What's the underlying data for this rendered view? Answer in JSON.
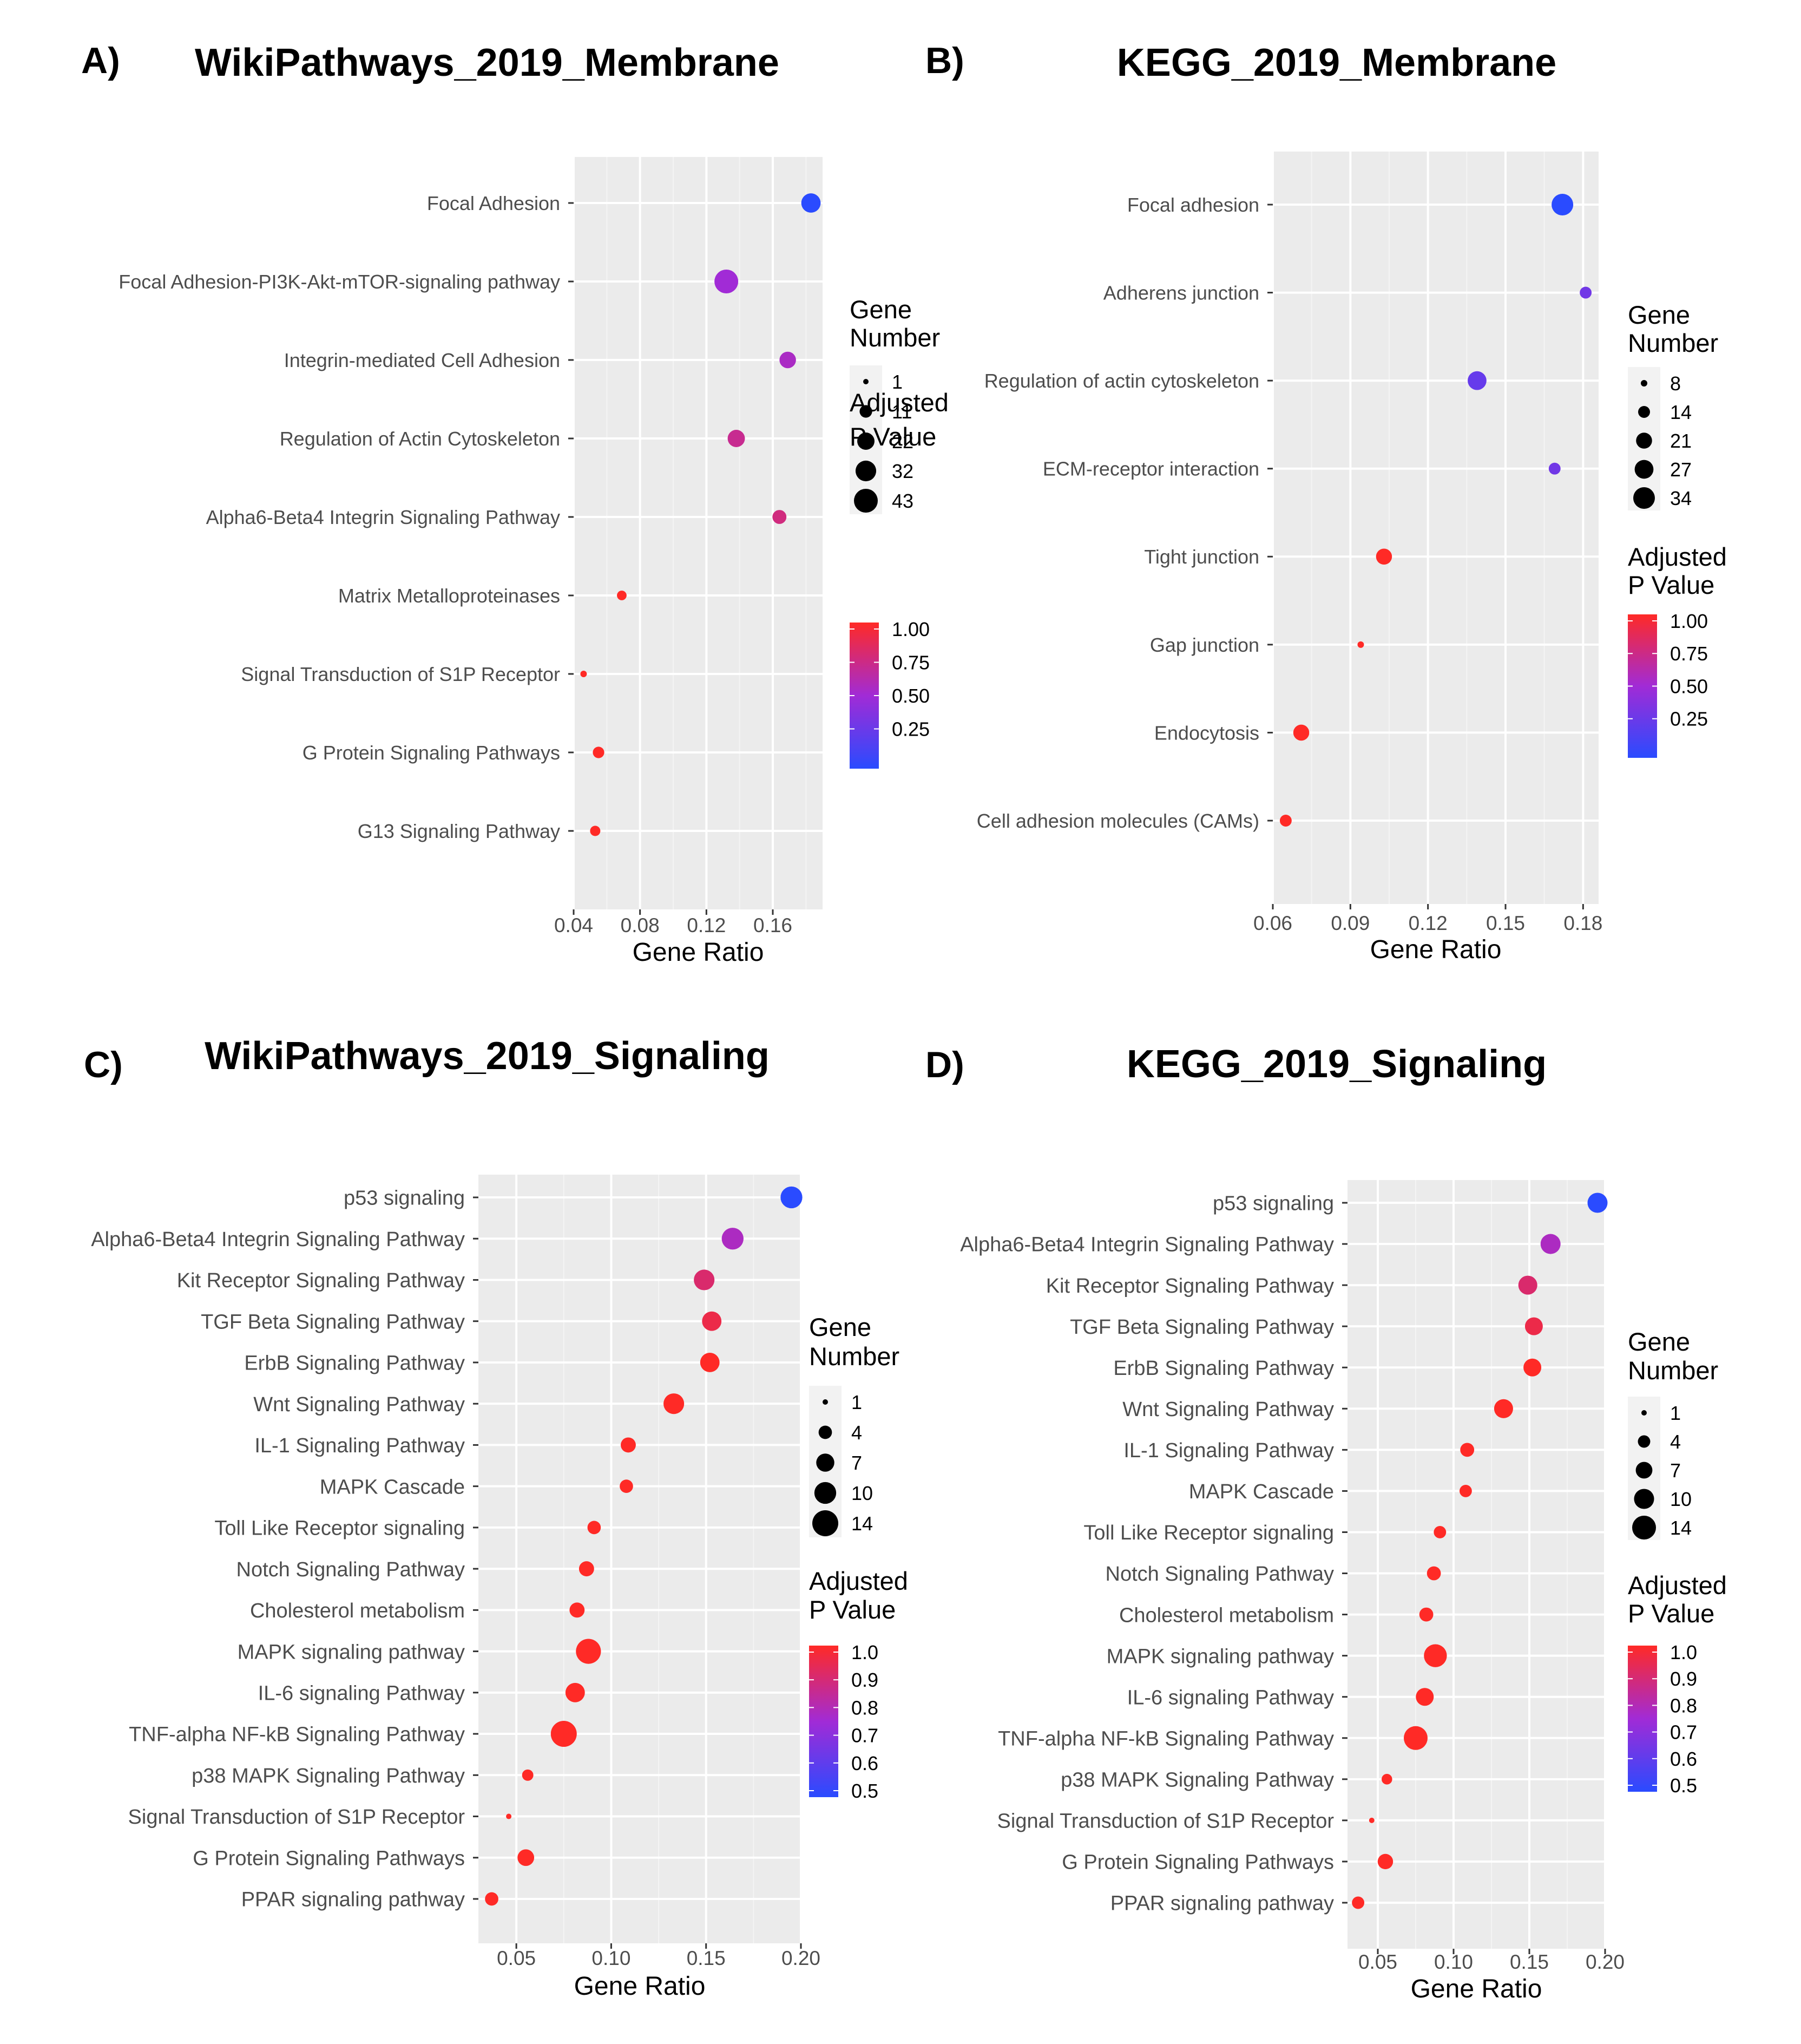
{
  "chart_data": [
    {
      "panel": "A)",
      "type": "scatter",
      "title": "WikiPathways_2019_Membrane",
      "xlabel": "Gene Ratio",
      "ylabel": "",
      "xlim": [
        0.04,
        0.19
      ],
      "xticks": [
        0.04,
        0.08,
        0.12,
        0.16
      ],
      "xtick_labels": [
        "0.04",
        "0.08",
        "0.12",
        "0.16"
      ],
      "grid": true,
      "categories": [
        "Focal Adhesion",
        "Focal Adhesion-PI3K-Akt-mTOR-signaling pathway",
        "Integrin-mediated Cell Adhesion",
        "Regulation of Actin Cytoskeleton",
        "Alpha6-Beta4 Integrin Signaling Pathway",
        "Matrix Metalloproteinases",
        "Signal Transduction of S1P Receptor",
        "G Protein Signaling Pathways",
        "G13 Signaling Pathway"
      ],
      "gene_ratio": [
        0.183,
        0.132,
        0.169,
        0.138,
        0.164,
        0.069,
        0.046,
        0.055,
        0.053
      ],
      "gene_number": [
        28,
        43,
        20,
        22,
        14,
        6,
        2,
        9,
        7
      ],
      "padj": [
        0.0,
        0.5,
        0.55,
        0.7,
        0.75,
        1.0,
        1.0,
        1.0,
        1.0
      ],
      "legend_size": {
        "title_line1": "Gene",
        "title_line2": "Number",
        "values": [
          1,
          11,
          22,
          32,
          43
        ],
        "labels": [
          "1",
          "11",
          "22",
          "32",
          "43"
        ]
      },
      "legend_color": {
        "title_line1": "Adjusted",
        "title_line2": "P Value",
        "min": 0.0,
        "max": 1.0,
        "ticks": [
          1.0,
          0.75,
          0.5,
          0.25
        ],
        "tick_labels": [
          "1.00",
          "0.75",
          "0.50",
          "0.25"
        ]
      }
    },
    {
      "panel": "B)",
      "type": "scatter",
      "title": "KEGG_2019_Membrane",
      "xlabel": "Gene Ratio",
      "ylabel": "",
      "xlim": [
        0.06,
        0.186
      ],
      "xticks": [
        0.06,
        0.09,
        0.12,
        0.15,
        0.18
      ],
      "xtick_labels": [
        "0.06",
        "0.09",
        "0.12",
        "0.15",
        "0.18"
      ],
      "grid": true,
      "categories": [
        "Focal adhesion",
        "Adherens junction",
        "Regulation of actin cytoskeleton",
        "ECM-receptor interaction",
        "Tight junction",
        "Gap junction",
        "Endocytosis",
        "Cell adhesion molecules (CAMs)"
      ],
      "gene_ratio": [
        0.172,
        0.181,
        0.139,
        0.169,
        0.103,
        0.094,
        0.071,
        0.065
      ],
      "gene_number": [
        34,
        14,
        27,
        14,
        21,
        8,
        21,
        14
      ],
      "padj": [
        0.0,
        0.3,
        0.25,
        0.3,
        1.0,
        1.0,
        1.0,
        1.0
      ],
      "legend_size": {
        "title_line1": "Gene",
        "title_line2": "Number",
        "values": [
          8,
          14,
          21,
          27,
          34
        ],
        "labels": [
          "8",
          "14",
          "21",
          "27",
          "34"
        ]
      },
      "legend_color": {
        "title_line1": "Adjusted",
        "title_line2": "P Value",
        "min": 0.0,
        "max": 1.0,
        "ticks": [
          1.0,
          0.75,
          0.5,
          0.25
        ],
        "tick_labels": [
          "1.00",
          "0.75",
          "0.50",
          "0.25"
        ]
      }
    },
    {
      "panel": "C)",
      "type": "scatter",
      "title": "WikiPathways_2019_Signaling",
      "xlabel": "Gene Ratio",
      "ylabel": "",
      "xlim": [
        0.03,
        0.2
      ],
      "xticks": [
        0.05,
        0.1,
        0.15,
        0.2
      ],
      "xtick_labels": [
        "0.05",
        "0.10",
        "0.15",
        "0.20"
      ],
      "grid": true,
      "categories": [
        "p53 signaling",
        "Alpha6-Beta4 Integrin Signaling Pathway",
        "Kit Receptor Signaling Pathway",
        "TGF Beta Signaling Pathway",
        "ErbB Signaling Pathway",
        "Wnt Signaling Pathway",
        "IL-1 Signaling Pathway",
        "MAPK Cascade",
        "Toll Like Receptor signaling",
        "Notch Signaling Pathway",
        "Cholesterol metabolism",
        "MAPK signaling pathway",
        "IL-6 signaling Pathway",
        "TNF-alpha NF-kB Signaling Pathway",
        "p38 MAPK Signaling Pathway",
        "Signal Transduction of S1P Receptor",
        "G Protein Signaling Pathways",
        "PPAR signaling pathway"
      ],
      "gene_ratio": [
        0.195,
        0.164,
        0.149,
        0.153,
        0.152,
        0.133,
        0.109,
        0.108,
        0.091,
        0.087,
        0.082,
        0.088,
        0.081,
        0.075,
        0.056,
        0.046,
        0.055,
        0.037
      ],
      "gene_number": [
        10,
        10,
        9,
        8,
        8,
        9,
        5,
        4,
        4,
        5,
        5,
        13,
        8,
        14,
        3,
        1,
        6,
        4
      ],
      "padj": [
        0.5,
        0.78,
        0.9,
        0.95,
        1.0,
        1.0,
        1.0,
        1.0,
        1.0,
        1.0,
        1.0,
        1.0,
        1.0,
        1.0,
        1.0,
        1.0,
        1.0,
        1.0
      ],
      "legend_size": {
        "title_line1": "Gene",
        "title_line2": "Number",
        "values": [
          1,
          4,
          7,
          10,
          14
        ],
        "labels": [
          "1",
          "4",
          "7",
          "10",
          "14"
        ]
      },
      "legend_color": {
        "title_line1": "Adjusted",
        "title_line2": "P Value",
        "min": 0.5,
        "max": 1.0,
        "ticks": [
          1.0,
          0.9,
          0.8,
          0.7,
          0.6,
          0.5
        ],
        "tick_labels": [
          "1.0",
          "0.9",
          "0.8",
          "0.7",
          "0.6",
          "0.5"
        ]
      }
    },
    {
      "panel": "D)",
      "type": "scatter",
      "title": "KEGG_2019_Signaling",
      "xlabel": "Gene Ratio",
      "ylabel": "",
      "xlim": [
        0.03,
        0.2
      ],
      "xticks": [
        0.05,
        0.1,
        0.15,
        0.2
      ],
      "xtick_labels": [
        "0.05",
        "0.10",
        "0.15",
        "0.20"
      ],
      "grid": true,
      "categories": [
        "p53 signaling",
        "Alpha6-Beta4 Integrin Signaling Pathway",
        "Kit Receptor Signaling Pathway",
        "TGF Beta Signaling Pathway",
        "ErbB Signaling Pathway",
        "Wnt Signaling Pathway",
        "IL-1 Signaling Pathway",
        "MAPK Cascade",
        "Toll Like Receptor signaling",
        "Notch Signaling Pathway",
        "Cholesterol metabolism",
        "MAPK signaling pathway",
        "IL-6 signaling Pathway",
        "TNF-alpha NF-kB Signaling Pathway",
        "p38 MAPK Signaling Pathway",
        "Signal Transduction of S1P Receptor",
        "G Protein Signaling Pathways",
        "PPAR signaling pathway"
      ],
      "gene_ratio": [
        0.195,
        0.164,
        0.149,
        0.153,
        0.152,
        0.133,
        0.109,
        0.108,
        0.091,
        0.087,
        0.082,
        0.088,
        0.081,
        0.075,
        0.056,
        0.046,
        0.055,
        0.037
      ],
      "gene_number": [
        10,
        10,
        9,
        8,
        8,
        9,
        5,
        4,
        4,
        5,
        5,
        13,
        8,
        14,
        3,
        1,
        6,
        4
      ],
      "padj": [
        0.5,
        0.78,
        0.9,
        0.95,
        1.0,
        1.0,
        1.0,
        1.0,
        1.0,
        1.0,
        1.0,
        1.0,
        1.0,
        1.0,
        1.0,
        1.0,
        1.0,
        1.0
      ],
      "legend_size": {
        "title_line1": "Gene",
        "title_line2": "Number",
        "values": [
          1,
          4,
          7,
          10,
          14
        ],
        "labels": [
          "1",
          "4",
          "7",
          "10",
          "14"
        ]
      },
      "legend_color": {
        "title_line1": "Adjusted",
        "title_line2": "P Value",
        "min": 0.5,
        "max": 1.0,
        "ticks": [
          1.0,
          0.9,
          0.8,
          0.7,
          0.6,
          0.5
        ],
        "tick_labels": [
          "1.0",
          "0.9",
          "0.8",
          "0.7",
          "0.6",
          "0.5"
        ]
      }
    }
  ],
  "colors": {
    "panel_bg": "#ebebeb",
    "grid_major": "#ffffff",
    "grid_minor": "#f4f4f4",
    "low_p": "#2a4bff",
    "mid_p": "#a12bd6",
    "high_p": "#ff2a26",
    "tick_text": "#4d4d4d",
    "title_text": "#000000"
  }
}
